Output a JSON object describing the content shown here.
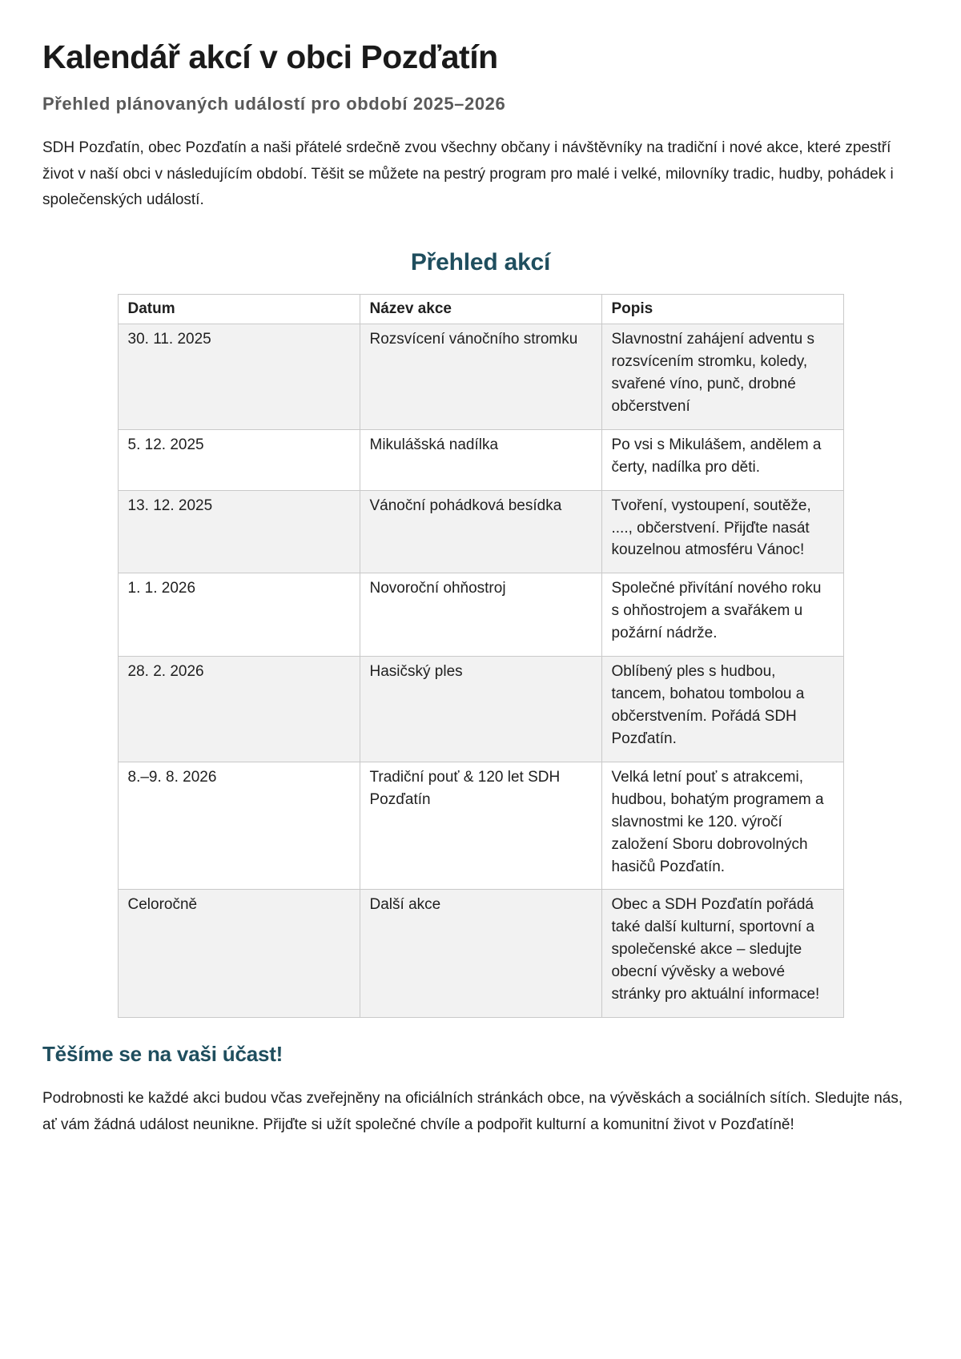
{
  "page": {
    "title": "Kalendář akcí v obci Pozďatín",
    "subtitle": "Přehled plánovaných událostí pro období 2025–2026",
    "intro": "SDH Pozďatín, obec Pozďatín a naši přátelé srdečně zvou všechny občany i návštěvníky na tradiční i nové akce, které zpestří život v naší obci v následujícím období. Těšit se můžete na pestrý program pro malé i velké, milovníky tradic, hudby, pohádek i společenských událostí.",
    "section_heading": "Přehled akcí",
    "closing_heading": "Těšíme se na vaši účast!",
    "closing_text": "Podrobnosti ke každé akci budou včas zveřejněny na oficiálních stránkách obce, na vývěskách a sociálních sítích. Sledujte nás, ať vám žádná událost neunikne. Přijďte si užít společné chvíle a podpořit kulturní a komunitní život v Pozďatíně!"
  },
  "table": {
    "columns": [
      "Datum",
      "Název akce",
      "Popis"
    ],
    "column_keys": [
      "datum",
      "nazev-akce",
      "popis"
    ],
    "rows": [
      [
        "30. 11. 2025",
        "Rozsvícení vánočního stromku",
        "Slavnostní zahájení adventu s rozsvícením stromku, koledy, svařené víno, punč, drobné občerstvení"
      ],
      [
        "5. 12. 2025",
        "Mikulášská nadílka",
        "Po vsi s Mikulášem, andělem a čerty, nadílka pro děti."
      ],
      [
        "13. 12. 2025",
        "Vánoční pohádková besídka",
        "Tvoření, vystoupení, soutěže, ...., občerstvení. Přijďte nasát kouzelnou atmosféru Vánoc!"
      ],
      [
        "1. 1. 2026",
        "Novoroční ohňostroj",
        "Společné přivítání nového roku s ohňostrojem a svařákem u požární nádrže."
      ],
      [
        "28. 2. 2026",
        "Hasičský ples",
        "Oblíbený ples s hudbou, tancem, bohatou tombolou a občerstvením. Pořádá SDH Pozďatín."
      ],
      [
        "8.–9. 8. 2026",
        "Tradiční pouť & 120 let SDH Pozďatín",
        "Velká letní pouť s atrakcemi, hudbou, bohatým programem a slavnostmi ke 120. výročí založení Sboru dobrovolných hasičů Pozďatín."
      ],
      [
        "Celoročně",
        "Další akce",
        "Obec a SDH Pozďatín pořádá také další kulturní, sportovní a společenské akce – sledujte obecní vývěsky a webové stránky pro aktuální informace!"
      ]
    ]
  },
  "colors": {
    "heading_accent": "#1f4e5e",
    "subtitle_gray": "#595959",
    "body_text": "#1f1f1f",
    "table_border": "#c9c9c9",
    "row_stripe": "#f2f2f2"
  }
}
